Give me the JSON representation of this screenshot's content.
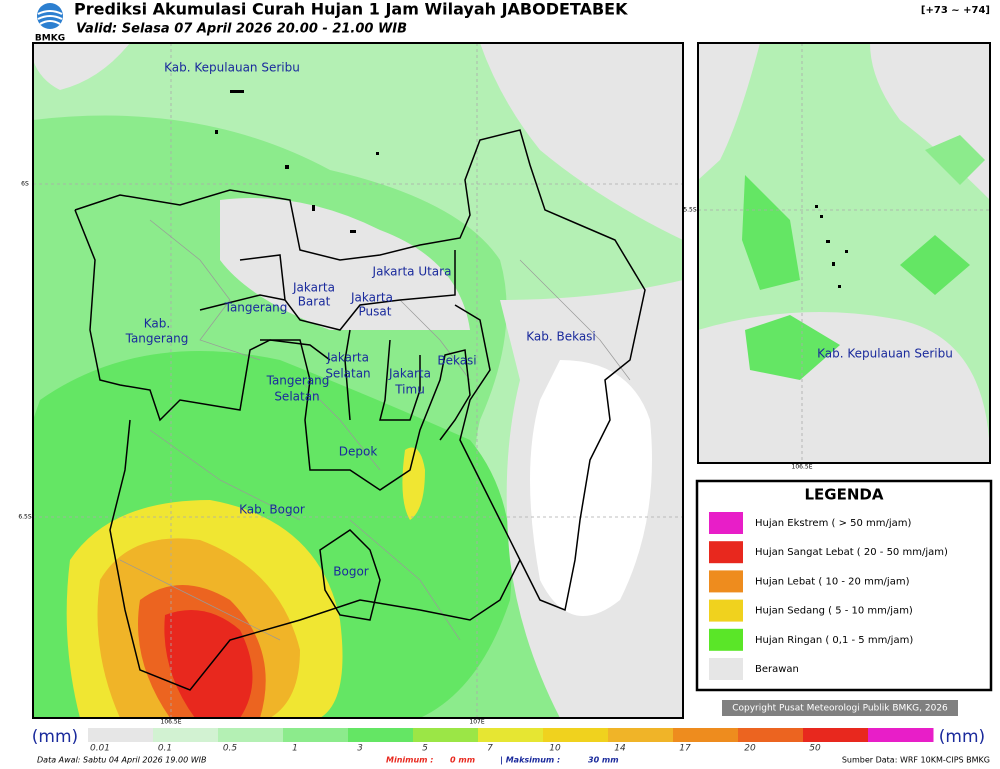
{
  "header": {
    "logo": "BMKG",
    "title": "Prediksi Akumulasi Curah Hujan 1 Jam Wilayah JABODETABEK",
    "valid": "Valid: Selasa 07 April 2026 20.00 - 21.00 WIB",
    "code": "[+73 ~ +74]"
  },
  "map": {
    "labels": [
      {
        "text": "Kab. Kepulauan Seribu"
      },
      {
        "text": "Jakarta Utara"
      },
      {
        "text": "Jakarta"
      },
      {
        "text": "Barat"
      },
      {
        "text": "Jakarta"
      },
      {
        "text": "Pusat"
      },
      {
        "text": "Tangerang"
      },
      {
        "text": "Kab."
      },
      {
        "text": "Tangerang"
      },
      {
        "text": "Kab. Bekasi"
      },
      {
        "text": "Jakarta"
      },
      {
        "text": "Selatan"
      },
      {
        "text": "Bekasi"
      },
      {
        "text": "Jakarta"
      },
      {
        "text": "Timu"
      },
      {
        "text": "Tangerang"
      },
      {
        "text": "Selatan"
      },
      {
        "text": "Depok"
      },
      {
        "text": "Kab. Bogor"
      },
      {
        "text": "Bogor"
      }
    ],
    "axis": {
      "lat": [
        "6S",
        "6.5S"
      ],
      "lon": [
        "106.5E",
        "107E"
      ]
    }
  },
  "inset": {
    "label": "Kab. Kepulauan Seribu",
    "axis": {
      "lat": "5.5S",
      "lon": "106.5E"
    }
  },
  "legend": {
    "title": "LEGENDA",
    "items": [
      {
        "label": "Hujan Ekstrem ( > 50 mm/jam)",
        "color": "#e81ec8"
      },
      {
        "label": "Hujan Sangat Lebat ( 20 - 50 mm/jam)",
        "color": "#e8281e"
      },
      {
        "label": "Hujan Lebat ( 10 - 20 mm/jam)",
        "color": "#ee8c1e"
      },
      {
        "label": "Hujan Sedang ( 5 - 10 mm/jam)",
        "color": "#f0d21e"
      },
      {
        "label": "Hujan Ringan ( 0,1 - 5 mm/jam)",
        "color": "#5ae628"
      },
      {
        "label": "Berawan",
        "color": "#e6e6e6"
      }
    ]
  },
  "copyright": "Copyright Pusat Meteorologi Publik BMKG, 2026",
  "colorbar": {
    "unit_left": "(mm)",
    "unit_right": "(mm)",
    "labels": [
      "0.01",
      "0.1",
      "0.5",
      "1",
      "3",
      "5",
      "7",
      "10",
      "14",
      "17",
      "20",
      "50"
    ],
    "colors": [
      "#e6e6e6",
      "#d2f2d2",
      "#b4f0b4",
      "#8ceb8c",
      "#64e664",
      "#9be646",
      "#e6e632",
      "#f0d21e",
      "#f0b428",
      "#ee8c1e",
      "#ec6420",
      "#e8281e",
      "#e81ec8"
    ]
  },
  "footer": {
    "data_awal": "Data Awal: Sabtu 04 April 2026 19.00 WIB",
    "min_label": "Minimum :",
    "min_value": "0 mm",
    "max_label": "| Maksimum :",
    "max_value": "30 mm",
    "source": "Sumber Data: WRF 10KM-CIPS BMKG"
  }
}
